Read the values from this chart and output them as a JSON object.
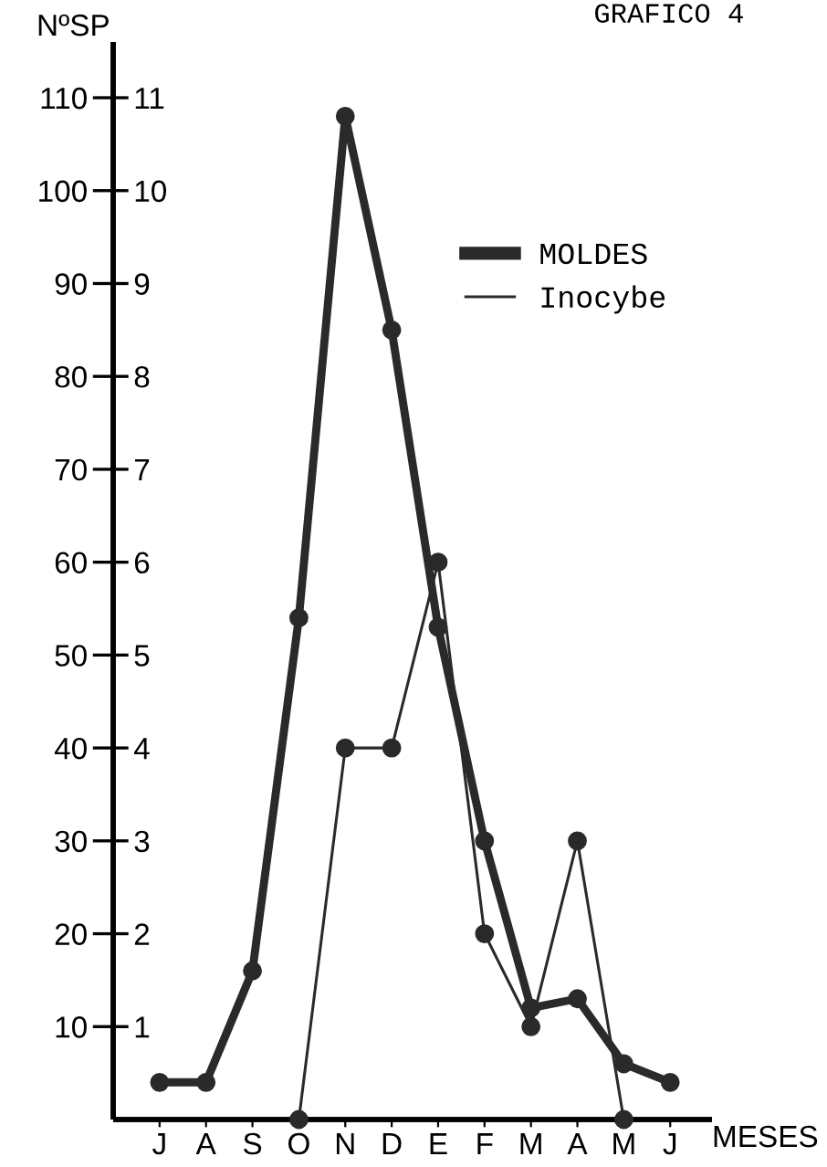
{
  "chart_data": {
    "type": "line",
    "title": "GRAFICO 4",
    "xlabel": "MESES",
    "ylabel": "NºSP",
    "categories": [
      "J",
      "A",
      "S",
      "O",
      "N",
      "D",
      "E",
      "F",
      "M",
      "A",
      "M",
      "J"
    ],
    "series": [
      {
        "name": "MOLDES",
        "color": "#2a2a2a",
        "values": [
          4,
          4,
          16,
          54,
          108,
          85,
          53,
          30,
          12,
          13,
          6,
          4
        ]
      },
      {
        "name": "Inocybe",
        "color": "#2a2a2a",
        "axis": "y2",
        "values": [
          null,
          null,
          null,
          0,
          4,
          4,
          6,
          2,
          1,
          3,
          0,
          null
        ]
      }
    ],
    "ylim": [
      0,
      116
    ],
    "yticks": [
      10,
      20,
      30,
      40,
      50,
      60,
      70,
      80,
      90,
      100,
      110
    ],
    "y2lim": [
      0,
      11.6
    ],
    "y2ticks": [
      1,
      2,
      3,
      4,
      5,
      6,
      7,
      8,
      9,
      10,
      11
    ],
    "legend": "top right",
    "marker": "circle",
    "line_style": "solid",
    "grid": false
  }
}
